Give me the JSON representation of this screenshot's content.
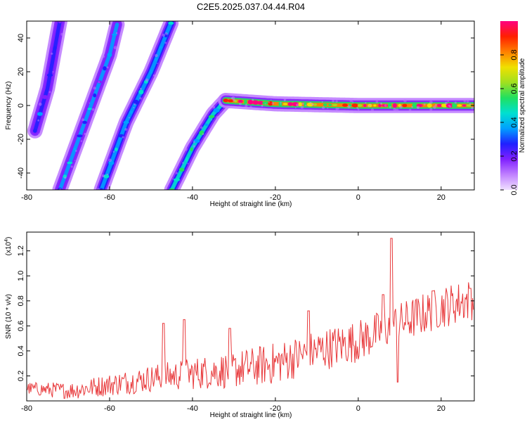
{
  "figure": {
    "title": "C2E5.2025.037.04.44.R04"
  },
  "colors": {
    "snr_line": "#e8393b",
    "spectrogram_background": "#ffffff",
    "colormap": [
      "#f0e0ff",
      "#c080ff",
      "#8020ff",
      "#2020ff",
      "#00a0ff",
      "#00e0d0",
      "#20e060",
      "#a0e020",
      "#f0e000",
      "#ff8000",
      "#ff2000",
      "#ff0080"
    ]
  },
  "chart_data": [
    {
      "type": "heatmap",
      "name": "spectrogram",
      "xlabel": "Height of straight line (km)",
      "ylabel": "Frequency (Hz)",
      "xlim": [
        -80,
        28
      ],
      "ylim": [
        -50,
        50
      ],
      "xticks": [
        -80,
        -60,
        -40,
        -20,
        0,
        20
      ],
      "yticks": [
        -40,
        -20,
        0,
        20,
        40
      ],
      "grid": false,
      "colorbar": {
        "label": "Normalized spectral amplitude",
        "range": [
          0,
          1
        ],
        "ticks": [
          "0.0",
          "0.2",
          "0.4",
          "0.6",
          "0.8"
        ]
      },
      "ridges": [
        {
          "name": "ridge-1",
          "x": [
            -78,
            -75,
            -72
          ],
          "y": [
            -15,
            10,
            50
          ],
          "amplitude": 0.25
        },
        {
          "name": "ridge-2",
          "x": [
            -72,
            -66,
            -60,
            -58
          ],
          "y": [
            -50,
            -10,
            30,
            50
          ],
          "amplitude": 0.35
        },
        {
          "name": "ridge-3",
          "x": [
            -62,
            -56,
            -50,
            -45
          ],
          "y": [
            -50,
            -10,
            20,
            50
          ],
          "amplitude": 0.4
        },
        {
          "name": "ridge-4",
          "x": [
            -45,
            -40,
            -35,
            -32
          ],
          "y": [
            -50,
            -25,
            -5,
            3
          ],
          "amplitude": 0.45
        },
        {
          "name": "ridge-5",
          "x": [
            -32,
            -20,
            0,
            20,
            28
          ],
          "y": [
            3,
            1,
            0,
            0,
            0
          ],
          "amplitude": 0.85
        }
      ]
    },
    {
      "type": "line",
      "name": "snr",
      "xlabel": "Height of straight line (km)",
      "ylabel": "SNR (10 * v/v)",
      "ylabel_multiplier": "(x10",
      "ylabel_exponent": "4",
      "y_display_unit": "x10^4",
      "xlim": [
        -80,
        28
      ],
      "ylim": [
        0,
        1.35
      ],
      "xticks": [
        -80,
        -60,
        -40,
        -20,
        0,
        20
      ],
      "yticks": [
        0.2,
        0.4,
        0.6,
        0.8,
        1.0,
        1.2
      ],
      "grid": false,
      "trend": {
        "x": [
          -80,
          -70,
          -60,
          -50,
          -40,
          -30,
          -20,
          -10,
          0,
          5,
          8,
          10,
          20,
          28
        ],
        "y": [
          0.1,
          0.08,
          0.13,
          0.18,
          0.22,
          0.25,
          0.3,
          0.4,
          0.48,
          0.55,
          0.6,
          0.62,
          0.75,
          0.82
        ]
      },
      "peaks": [
        {
          "x": -47,
          "y": 0.62
        },
        {
          "x": -42,
          "y": 0.65
        },
        {
          "x": -31,
          "y": 0.58
        },
        {
          "x": -12,
          "y": 0.72
        },
        {
          "x": 6,
          "y": 0.85
        },
        {
          "x": 8,
          "y": 1.3
        },
        {
          "x": 9.5,
          "y": 0.15
        },
        {
          "x": 18,
          "y": 0.88
        },
        {
          "x": 27,
          "y": 0.9
        }
      ]
    }
  ]
}
